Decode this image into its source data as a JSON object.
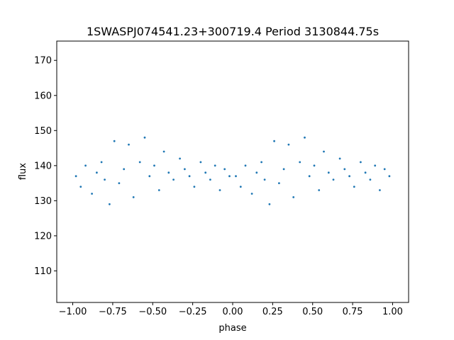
{
  "chart_data": {
    "type": "scatter",
    "title": "1SWASPJ074541.23+300719.4 Period 3130844.75s",
    "xlabel": "phase",
    "ylabel": "flux",
    "xlim": [
      -1.1,
      1.1
    ],
    "ylim": [
      101,
      175.5
    ],
    "xticks": [
      -1.0,
      -0.75,
      -0.5,
      -0.25,
      0.0,
      0.25,
      0.5,
      0.75,
      1.0
    ],
    "xtick_labels": [
      "−1.00",
      "−0.75",
      "−0.50",
      "−0.25",
      "0.00",
      "0.25",
      "0.50",
      "0.75",
      "1.00"
    ],
    "yticks": [
      110,
      120,
      130,
      140,
      150,
      160,
      170
    ],
    "ytick_labels": [
      "110",
      "120",
      "130",
      "140",
      "150",
      "160",
      "170"
    ],
    "grid": false,
    "legend": "none",
    "marker_color": "#1f77b4",
    "series": [
      {
        "x": [
          -0.98,
          -0.95,
          -0.92,
          -0.88,
          -0.85,
          -0.82,
          -0.8,
          -0.77,
          -0.74,
          -0.71,
          -0.68,
          -0.65,
          -0.62,
          -0.58,
          -0.55,
          -0.52,
          -0.49,
          -0.46,
          -0.43,
          -0.4,
          -0.37,
          -0.33,
          -0.3,
          -0.27,
          -0.24,
          -0.2,
          -0.17,
          -0.14,
          -0.11,
          -0.08,
          -0.05,
          -0.02,
          0.02,
          0.05,
          0.08,
          0.12,
          0.15,
          0.18,
          0.2,
          0.23,
          0.26,
          0.29,
          0.32,
          0.35,
          0.38,
          0.42,
          0.45,
          0.48,
          0.51,
          0.54,
          0.57,
          0.6,
          0.63,
          0.67,
          0.7,
          0.73,
          0.76,
          0.8,
          0.83,
          0.86,
          0.89,
          0.92,
          0.95,
          0.98
        ],
        "y": [
          137,
          134,
          140,
          132,
          138,
          141,
          136,
          129,
          147,
          135,
          139,
          146,
          131,
          141,
          148,
          137,
          140,
          133,
          144,
          138,
          136,
          142,
          139,
          137,
          134,
          141,
          138,
          136,
          140,
          133,
          139,
          137,
          137,
          134,
          140,
          132,
          138,
          141,
          136,
          129,
          147,
          135,
          139,
          146,
          131,
          141,
          148,
          137,
          140,
          133,
          144,
          138,
          136,
          142,
          139,
          137,
          134,
          141,
          138,
          136,
          140,
          133,
          139,
          137
        ]
      }
    ]
  }
}
